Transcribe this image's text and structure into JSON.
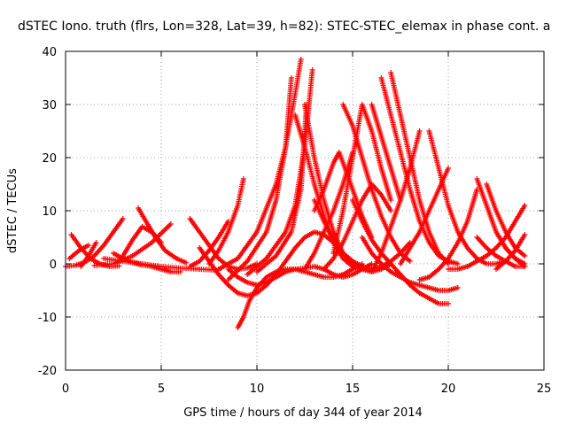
{
  "chart_data": {
    "type": "scatter",
    "title": "dSTEC Iono. truth (flrs, Lon=328, Lat=39, h=82): STEC-STEC_elemax in phase cont. a",
    "xlabel": "GPS time / hours of day 344 of year 2014",
    "ylabel": "dSTEC / TECUs",
    "xlim": [
      0,
      25
    ],
    "ylim": [
      -20,
      40
    ],
    "xticks": [
      "0",
      "5",
      "10",
      "15",
      "20",
      "25"
    ],
    "yticks": [
      "-20",
      "-10",
      "0",
      "10",
      "20",
      "30",
      "40"
    ],
    "grid": true,
    "marker": "+",
    "color": "#ff0000",
    "series": [
      {
        "x": [
          0.0,
          0.5,
          1.0,
          1.5,
          2.0,
          2.5,
          3.0
        ],
        "y": [
          -0.5,
          -0.3,
          0.3,
          1.5,
          3.5,
          6.0,
          8.5
        ]
      },
      {
        "x": [
          0.3,
          0.8,
          1.3,
          1.8,
          2.3,
          2.8
        ],
        "y": [
          5.5,
          3.0,
          1.0,
          0.0,
          -0.5,
          -0.4
        ]
      },
      {
        "x": [
          0.2,
          0.7,
          1.2
        ],
        "y": [
          1.0,
          2.5,
          3.5
        ]
      },
      {
        "x": [
          0.8,
          1.2,
          1.6
        ],
        "y": [
          -0.5,
          1.5,
          4.0
        ]
      },
      {
        "x": [
          2.5,
          3.0,
          3.5,
          4.0,
          4.5,
          5.0,
          5.5,
          6.0
        ],
        "y": [
          2.0,
          1.0,
          0.3,
          -0.2,
          -0.5,
          -1.0,
          -1.5,
          -1.5
        ]
      },
      {
        "x": [
          1.5,
          2.5,
          3.5,
          4.5,
          5.5
        ],
        "y": [
          -0.3,
          0.0,
          1.5,
          4.0,
          7.5
        ]
      },
      {
        "x": [
          3.0,
          3.5,
          4.0,
          4.5,
          5.0
        ],
        "y": [
          1.5,
          4.5,
          7.0,
          6.0,
          4.0
        ]
      },
      {
        "x": [
          3.8,
          4.2,
          4.7,
          5.2,
          5.8,
          6.3
        ],
        "y": [
          10.5,
          8.0,
          5.0,
          2.5,
          1.0,
          0.2
        ]
      },
      {
        "x": [
          2.0,
          3.0,
          4.0,
          5.0,
          6.0,
          7.0,
          8.0
        ],
        "y": [
          1.0,
          0.5,
          0.0,
          -0.5,
          -0.8,
          -1.0,
          -1.2
        ]
      },
      {
        "x": [
          6.5,
          7.0,
          7.5,
          8.0,
          8.5,
          9.0,
          9.5,
          10.0
        ],
        "y": [
          8.5,
          6.0,
          3.5,
          1.0,
          -0.5,
          -1.0,
          -0.8,
          0.0
        ]
      },
      {
        "x": [
          6.5,
          7.0,
          7.5,
          8.0,
          8.5
        ],
        "y": [
          -0.5,
          0.5,
          2.5,
          5.0,
          8.0
        ]
      },
      {
        "x": [
          7.0,
          7.5,
          8.0,
          8.5,
          9.0,
          9.5,
          10.0,
          10.5,
          11.0,
          11.5,
          12.0,
          12.5,
          13.0,
          13.5,
          14.0,
          14.5,
          15.0
        ],
        "y": [
          3.0,
          0.5,
          -2.0,
          -4.0,
          -5.5,
          -6.0,
          -5.5,
          -4.0,
          -2.0,
          0.5,
          3.0,
          5.0,
          6.0,
          5.5,
          4.0,
          2.0,
          0.5
        ]
      },
      {
        "x": [
          7.5,
          8.0,
          8.5,
          9.0,
          9.3
        ],
        "y": [
          0.0,
          2.5,
          6.0,
          11.0,
          16.0
        ]
      },
      {
        "x": [
          8.5,
          9.0,
          9.5,
          10.0,
          10.5,
          11.0,
          11.5,
          12.0,
          12.5,
          13.0,
          13.5,
          14.0,
          14.5,
          15.0,
          15.5,
          16.0
        ],
        "y": [
          -1.0,
          -2.5,
          -3.5,
          -4.0,
          -3.5,
          -2.5,
          -1.5,
          -1.0,
          -0.8,
          -0.5,
          -1.0,
          -2.0,
          -2.5,
          -2.0,
          -1.0,
          0.0
        ]
      },
      {
        "x": [
          9.0,
          9.3,
          9.6,
          10.0,
          10.5,
          11.0,
          11.5,
          12.0,
          12.5,
          13.0,
          13.5,
          14.0,
          14.5,
          15.0,
          15.5
        ],
        "y": [
          -12.0,
          -10.0,
          -7.0,
          -4.5,
          -2.5,
          -1.5,
          -1.0,
          -1.0,
          -1.5,
          -2.0,
          -2.5,
          -2.5,
          -2.0,
          -1.0,
          0.0
        ]
      },
      {
        "x": [
          8.0,
          9.0,
          10.0,
          11.0,
          11.5,
          12.0,
          12.3
        ],
        "y": [
          -1.0,
          1.0,
          6.0,
          15.0,
          22.0,
          32.0,
          38.5
        ]
      },
      {
        "x": [
          8.5,
          9.5,
          10.5,
          11.0,
          11.5,
          11.8
        ],
        "y": [
          -3.0,
          0.5,
          6.0,
          12.0,
          22.0,
          35.0
        ]
      },
      {
        "x": [
          9.5,
          10.5,
          11.5,
          12.0,
          12.5,
          12.9
        ],
        "y": [
          -2.0,
          1.0,
          6.0,
          11.0,
          22.0,
          36.5
        ]
      },
      {
        "x": [
          10.0,
          11.0,
          11.8,
          12.3,
          12.6
        ],
        "y": [
          -1.5,
          1.5,
          6.0,
          14.0,
          30.0
        ]
      },
      {
        "x": [
          12.0,
          12.5,
          13.0,
          13.5,
          14.0,
          14.5,
          15.0,
          15.5
        ],
        "y": [
          28.0,
          22.0,
          15.0,
          9.0,
          4.0,
          1.0,
          -0.5,
          -1.0
        ]
      },
      {
        "x": [
          12.5,
          13.0,
          13.5,
          14.0,
          14.5,
          15.0,
          15.5,
          16.0,
          16.5,
          17.0
        ],
        "y": [
          30.0,
          20.0,
          12.0,
          6.0,
          2.0,
          0.0,
          -1.0,
          -1.5,
          -1.0,
          0.0
        ]
      },
      {
        "x": [
          13.0,
          13.5,
          14.0,
          14.5,
          15.0,
          15.5,
          16.0,
          16.5,
          17.0,
          17.5,
          18.0
        ],
        "y": [
          12.0,
          8.0,
          4.5,
          2.0,
          0.5,
          -0.5,
          -1.0,
          -0.5,
          0.5,
          2.0,
          4.0
        ]
      },
      {
        "x": [
          12.5,
          13.0,
          13.5,
          14.0,
          14.5,
          15.0
        ],
        "y": [
          -1.0,
          2.0,
          6.0,
          10.0,
          15.0,
          21.0
        ]
      },
      {
        "x": [
          13.5,
          14.0,
          14.5,
          15.0,
          15.5,
          16.0,
          16.5,
          17.0
        ],
        "y": [
          -1.0,
          1.0,
          4.0,
          8.0,
          12.0,
          15.0,
          13.0,
          10.0
        ]
      },
      {
        "x": [
          13.0,
          13.5,
          14.0,
          14.3,
          14.5,
          15.0,
          15.5,
          16.0
        ],
        "y": [
          10.0,
          14.0,
          19.0,
          21.0,
          19.0,
          14.0,
          9.0,
          5.0
        ]
      },
      {
        "x": [
          14.0,
          14.5,
          15.0,
          15.5,
          16.0,
          16.5,
          17.0
        ],
        "y": [
          2.0,
          10.0,
          20.0,
          30.0,
          25.0,
          18.0,
          12.0
        ]
      },
      {
        "x": [
          14.5,
          15.0,
          15.5,
          16.0,
          16.5,
          17.0,
          17.5,
          18.0
        ],
        "y": [
          30.0,
          26.0,
          20.0,
          14.0,
          9.0,
          5.0,
          2.0,
          0.5
        ]
      },
      {
        "x": [
          15.0,
          15.5,
          16.0,
          16.5,
          17.0,
          17.5,
          18.0,
          18.5,
          19.0,
          19.5,
          20.0
        ],
        "y": [
          12.0,
          8.0,
          4.5,
          2.0,
          0.0,
          -2.0,
          -4.0,
          -5.5,
          -6.5,
          -7.5,
          -7.5
        ]
      },
      {
        "x": [
          15.5,
          16.0,
          16.5,
          17.0,
          17.5,
          18.0,
          18.5,
          19.0,
          19.5,
          20.0,
          20.5
        ],
        "y": [
          5.0,
          2.0,
          0.0,
          -1.5,
          -2.5,
          -3.5,
          -4.0,
          -4.5,
          -5.0,
          -5.0,
          -4.5
        ]
      },
      {
        "x": [
          16.0,
          16.5,
          17.0,
          17.5
        ],
        "y": [
          30.0,
          24.0,
          18.0,
          12.0
        ]
      },
      {
        "x": [
          16.5,
          17.0,
          17.5,
          18.0,
          18.5,
          19.0,
          19.5,
          20.0,
          20.5
        ],
        "y": [
          35.0,
          28.0,
          21.0,
          14.0,
          8.0,
          4.0,
          1.5,
          0.5,
          0.0
        ]
      },
      {
        "x": [
          17.0,
          17.5,
          18.0,
          18.5,
          19.0,
          19.5,
          20.0
        ],
        "y": [
          36.0,
          28.0,
          20.0,
          12.0,
          6.0,
          2.0,
          0.0
        ]
      },
      {
        "x": [
          16.0,
          16.5,
          17.0,
          17.5,
          18.0,
          18.5
        ],
        "y": [
          -1.5,
          2.0,
          7.0,
          12.0,
          18.0,
          25.0
        ]
      },
      {
        "x": [
          17.5,
          18.0,
          18.5,
          19.0,
          19.5,
          20.0
        ],
        "y": [
          0.0,
          3.0,
          6.0,
          10.0,
          14.0,
          18.0
        ]
      },
      {
        "x": [
          19.0,
          19.5,
          20.0,
          20.5,
          21.0,
          21.5,
          22.0,
          22.5,
          23.0
        ],
        "y": [
          25.0,
          18.0,
          11.0,
          6.0,
          3.0,
          1.0,
          0.0,
          0.0,
          0.5
        ]
      },
      {
        "x": [
          18.5,
          19.0,
          19.5,
          20.0,
          20.5,
          21.0,
          21.5
        ],
        "y": [
          -3.0,
          -2.5,
          -1.0,
          1.0,
          4.0,
          8.0,
          14.0
        ]
      },
      {
        "x": [
          20.0,
          20.5,
          21.0,
          21.5,
          22.0,
          22.5,
          23.0,
          23.5,
          24.0
        ],
        "y": [
          -1.0,
          -1.0,
          -0.5,
          0.5,
          1.5,
          3.0,
          5.0,
          8.0,
          11.0
        ]
      },
      {
        "x": [
          21.5,
          22.0,
          22.5,
          23.0,
          23.5,
          24.0
        ],
        "y": [
          16.0,
          11.0,
          6.0,
          3.0,
          1.0,
          0.0
        ]
      },
      {
        "x": [
          21.5,
          22.0,
          22.5,
          23.0,
          23.5,
          24.0
        ],
        "y": [
          5.0,
          3.0,
          1.5,
          0.5,
          -0.5,
          -0.5
        ]
      },
      {
        "x": [
          22.0,
          22.5,
          23.0,
          23.5,
          24.0
        ],
        "y": [
          15.0,
          10.0,
          6.0,
          3.0,
          1.5
        ]
      },
      {
        "x": [
          22.5,
          23.0,
          23.5,
          24.0
        ],
        "y": [
          -1.0,
          0.5,
          2.5,
          5.5
        ]
      },
      {
        "x": [
          23.0,
          23.5,
          24.0
        ],
        "y": [
          3.0,
          1.0,
          -0.5
        ]
      }
    ]
  }
}
